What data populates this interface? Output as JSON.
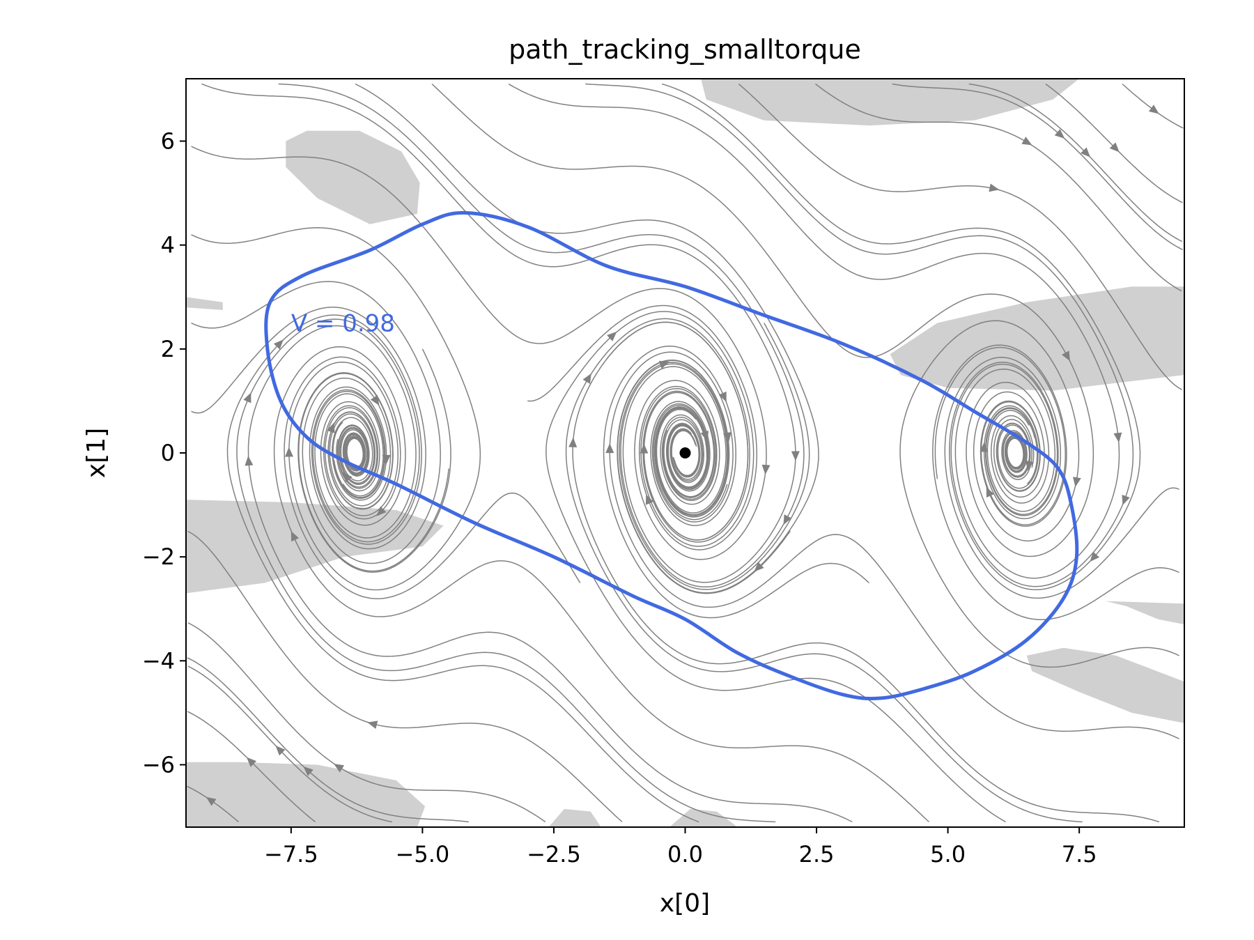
{
  "chart_data": {
    "type": "streamplot",
    "title": "path_tracking_smalltorque",
    "xlabel": "x[0]",
    "ylabel": "x[1]",
    "xlim": [
      -9.5,
      9.5
    ],
    "ylim": [
      -7.2,
      7.2
    ],
    "xticks": [
      -7.5,
      -5.0,
      -2.5,
      0.0,
      2.5,
      5.0,
      7.5
    ],
    "xtick_labels": [
      "−7.5",
      "−5.0",
      "−2.5",
      "0.0",
      "2.5",
      "5.0",
      "7.5"
    ],
    "yticks": [
      6,
      4,
      2,
      0,
      -2,
      -4,
      -6
    ],
    "ytick_labels": [
      "6",
      "4",
      "2",
      "0",
      "−2",
      "−4",
      "−6"
    ],
    "grid": false,
    "equilibrium": {
      "x": 0.0,
      "y": 0.0
    },
    "level_set": {
      "label": "V = 0.98",
      "label_pos": [
        -7.5,
        2.5
      ],
      "color": "#4169e1",
      "points": [
        [
          -4.2,
          4.62
        ],
        [
          -3.0,
          4.35
        ],
        [
          -1.5,
          3.6
        ],
        [
          0.0,
          3.2
        ],
        [
          1.5,
          2.65
        ],
        [
          3.0,
          2.1
        ],
        [
          4.5,
          1.4
        ],
        [
          5.5,
          0.8
        ],
        [
          6.5,
          0.2
        ],
        [
          7.1,
          -0.3
        ],
        [
          7.35,
          -1.0
        ],
        [
          7.45,
          -2.0
        ],
        [
          7.2,
          -2.8
        ],
        [
          6.5,
          -3.6
        ],
        [
          5.5,
          -4.2
        ],
        [
          4.5,
          -4.55
        ],
        [
          3.7,
          -4.72
        ],
        [
          3.0,
          -4.65
        ],
        [
          2.0,
          -4.3
        ],
        [
          1.0,
          -3.85
        ],
        [
          0.0,
          -3.2
        ],
        [
          -1.0,
          -2.75
        ],
        [
          -2.5,
          -2.0
        ],
        [
          -4.0,
          -1.35
        ],
        [
          -5.5,
          -0.6
        ],
        [
          -6.5,
          -0.15
        ],
        [
          -7.2,
          0.3
        ],
        [
          -7.7,
          1.0
        ],
        [
          -7.95,
          2.0
        ],
        [
          -7.9,
          2.9
        ],
        [
          -7.3,
          3.4
        ],
        [
          -6.0,
          3.9
        ],
        [
          -5.0,
          4.4
        ],
        [
          -4.2,
          4.62
        ]
      ]
    },
    "shaded_regions": [
      {
        "name": "region-top-right",
        "points": [
          [
            0.3,
            7.2
          ],
          [
            7.5,
            7.2
          ],
          [
            7.0,
            6.8
          ],
          [
            5.5,
            6.4
          ],
          [
            3.5,
            6.3
          ],
          [
            1.5,
            6.4
          ],
          [
            0.4,
            6.8
          ]
        ]
      },
      {
        "name": "region-upper-left",
        "points": [
          [
            -7.6,
            6.0
          ],
          [
            -7.2,
            6.2
          ],
          [
            -6.2,
            6.2
          ],
          [
            -5.4,
            5.8
          ],
          [
            -5.05,
            5.2
          ],
          [
            -5.1,
            4.6
          ],
          [
            -6.0,
            4.4
          ],
          [
            -7.0,
            4.9
          ],
          [
            -7.6,
            5.5
          ]
        ]
      },
      {
        "name": "region-right",
        "points": [
          [
            3.9,
            1.9
          ],
          [
            4.8,
            2.5
          ],
          [
            6.5,
            2.9
          ],
          [
            8.5,
            3.2
          ],
          [
            9.5,
            3.2
          ],
          [
            9.5,
            1.5
          ],
          [
            7.0,
            1.2
          ],
          [
            5.0,
            1.25
          ],
          [
            4.1,
            1.5
          ]
        ]
      },
      {
        "name": "region-left-edge",
        "points": [
          [
            -9.5,
            3.0
          ],
          [
            -8.8,
            2.9
          ],
          [
            -8.8,
            2.75
          ],
          [
            -9.5,
            2.8
          ]
        ]
      },
      {
        "name": "region-left",
        "points": [
          [
            -9.5,
            -0.9
          ],
          [
            -7.5,
            -0.95
          ],
          [
            -5.5,
            -1.1
          ],
          [
            -4.6,
            -1.4
          ],
          [
            -5.0,
            -1.8
          ],
          [
            -6.5,
            -2.0
          ],
          [
            -8.0,
            -2.5
          ],
          [
            -9.5,
            -2.7
          ]
        ]
      },
      {
        "name": "region-lower-right-edge",
        "points": [
          [
            8.0,
            -2.85
          ],
          [
            9.5,
            -2.9
          ],
          [
            9.5,
            -3.3
          ],
          [
            9.0,
            -3.2
          ],
          [
            8.4,
            -2.95
          ]
        ]
      },
      {
        "name": "region-lower-right",
        "points": [
          [
            6.5,
            -3.9
          ],
          [
            7.2,
            -3.75
          ],
          [
            8.2,
            -3.9
          ],
          [
            9.5,
            -4.4
          ],
          [
            9.5,
            -5.2
          ],
          [
            8.5,
            -5.0
          ],
          [
            7.5,
            -4.6
          ],
          [
            6.6,
            -4.2
          ]
        ]
      },
      {
        "name": "region-bottom-left",
        "points": [
          [
            -9.5,
            -5.95
          ],
          [
            -8.5,
            -5.95
          ],
          [
            -7.0,
            -6.0
          ],
          [
            -5.5,
            -6.3
          ],
          [
            -4.95,
            -6.8
          ],
          [
            -5.1,
            -7.2
          ],
          [
            -9.5,
            -7.2
          ]
        ]
      },
      {
        "name": "region-bottom-mid",
        "points": [
          [
            -2.6,
            -7.2
          ],
          [
            -2.3,
            -6.85
          ],
          [
            -1.8,
            -6.9
          ],
          [
            -1.6,
            -7.2
          ]
        ]
      },
      {
        "name": "region-bottom-center",
        "points": [
          [
            -0.3,
            -7.2
          ],
          [
            0.1,
            -6.85
          ],
          [
            0.6,
            -6.9
          ],
          [
            1.0,
            -7.2
          ]
        ]
      }
    ]
  }
}
